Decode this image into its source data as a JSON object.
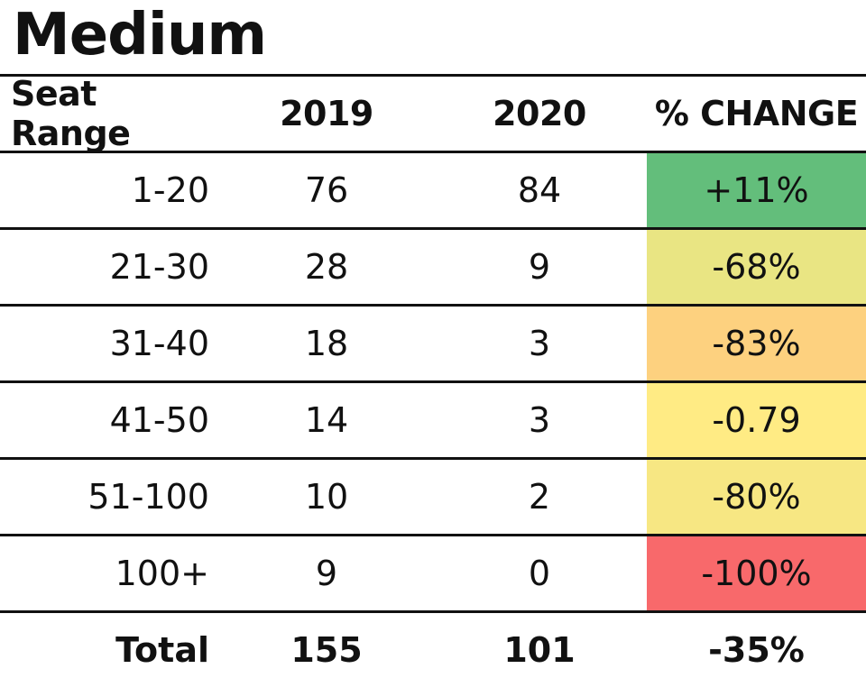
{
  "title": "Medium",
  "columns": [
    "Seat Range",
    "2019",
    "2020",
    "% CHANGE"
  ],
  "rows": [
    {
      "range": "1-20",
      "y2019": "76",
      "y2020": "84",
      "change": "+11%",
      "color": "#63BE7B"
    },
    {
      "range": "21-30",
      "y2019": "28",
      "y2020": "9",
      "change": "-68%",
      "color": "#E9E583"
    },
    {
      "range": "31-40",
      "y2019": "18",
      "y2020": "3",
      "change": "-83%",
      "color": "#FDD17F"
    },
    {
      "range": "41-50",
      "y2019": "14",
      "y2020": "3",
      "change": "-0.79",
      "color": "#FFEB84"
    },
    {
      "range": "51-100",
      "y2019": "10",
      "y2020": "2",
      "change": "-80%",
      "color": "#F7E783"
    },
    {
      "range": "100+",
      "y2019": "9",
      "y2020": "0",
      "change": "-100%",
      "color": "#F8696B"
    }
  ],
  "total": {
    "label": "Total",
    "y2019": "155",
    "y2020": "101",
    "change": "-35%"
  },
  "chart_data": {
    "type": "table",
    "title": "Medium",
    "columns": [
      "Seat Range",
      "2019",
      "2020",
      "% CHANGE"
    ],
    "rows": [
      [
        "1-20",
        76,
        84,
        "+11%"
      ],
      [
        "21-30",
        28,
        9,
        "-68%"
      ],
      [
        "31-40",
        18,
        3,
        "-83%"
      ],
      [
        "41-50",
        14,
        3,
        "-0.79"
      ],
      [
        "51-100",
        10,
        2,
        "-80%"
      ],
      [
        "100+",
        9,
        0,
        "-100%"
      ]
    ],
    "total": [
      "Total",
      155,
      101,
      "-35%"
    ]
  }
}
